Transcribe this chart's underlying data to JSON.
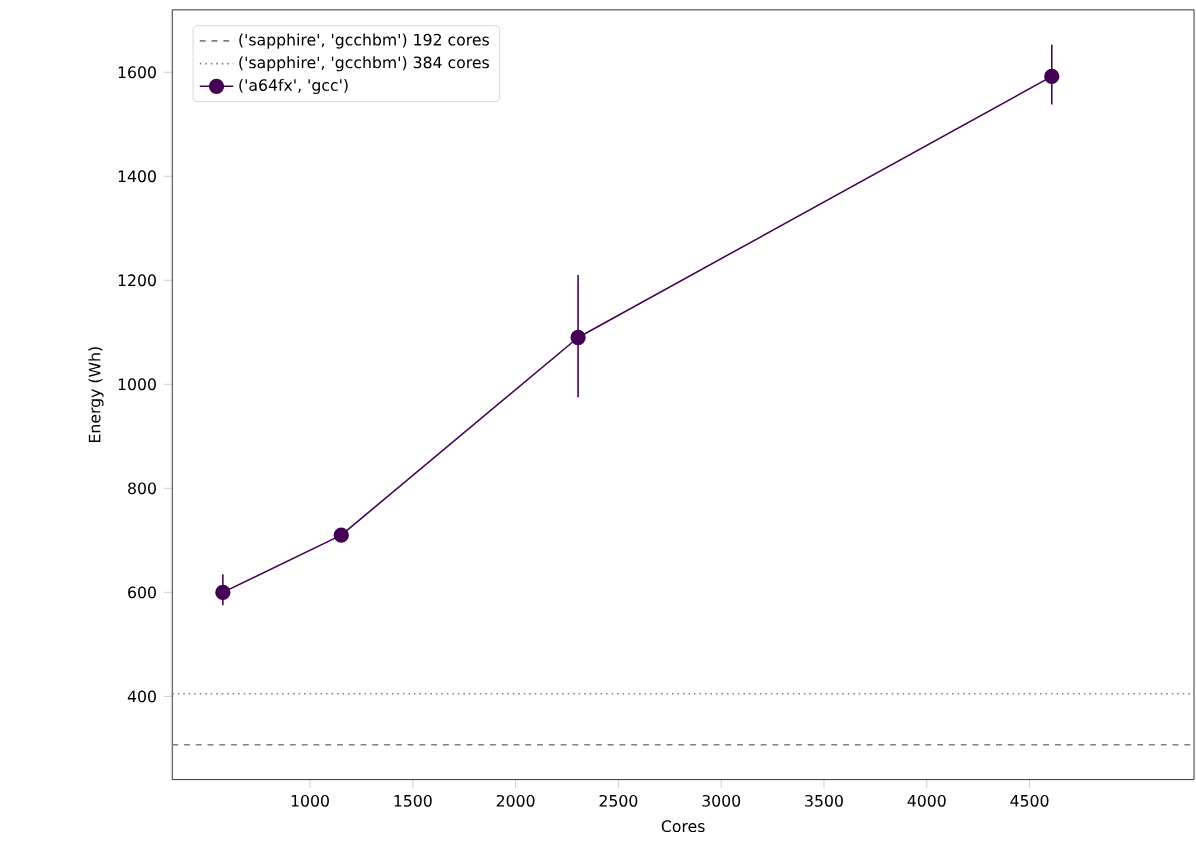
{
  "chart_data": {
    "type": "line",
    "xlabel": "Cores",
    "ylabel": "Energy (Wh)",
    "x": [
      576,
      1152,
      2304,
      4608
    ],
    "series": [
      {
        "name": "('a64fx', 'gcc')",
        "color": "#440154",
        "values": [
          600,
          710,
          1090,
          1592
        ],
        "errors": [
          [
            575,
            635
          ],
          [
            697,
            722
          ],
          [
            975,
            1210
          ],
          [
            1538,
            1653
          ]
        ]
      }
    ],
    "ref_lines": [
      {
        "axis": "y",
        "value": 307,
        "label": "('sapphire', 'gcchbm') 192 cores",
        "color": "#808080",
        "line_style": "dashed"
      },
      {
        "axis": "y",
        "value": 405,
        "label": "('sapphire', 'gcchbm') 384 cores",
        "color": "#808080",
        "line_style": "dotted"
      }
    ],
    "xlim": [
      330,
      5300
    ],
    "ylim": [
      240,
      1720
    ],
    "xticks": [
      1000,
      1500,
      2000,
      2500,
      3000,
      3500,
      4000,
      4500
    ],
    "yticks": [
      400,
      600,
      800,
      1000,
      1200,
      1400,
      1600
    ],
    "marker": "circle",
    "line_style": "solid",
    "legend": "top left",
    "grid": false
  }
}
